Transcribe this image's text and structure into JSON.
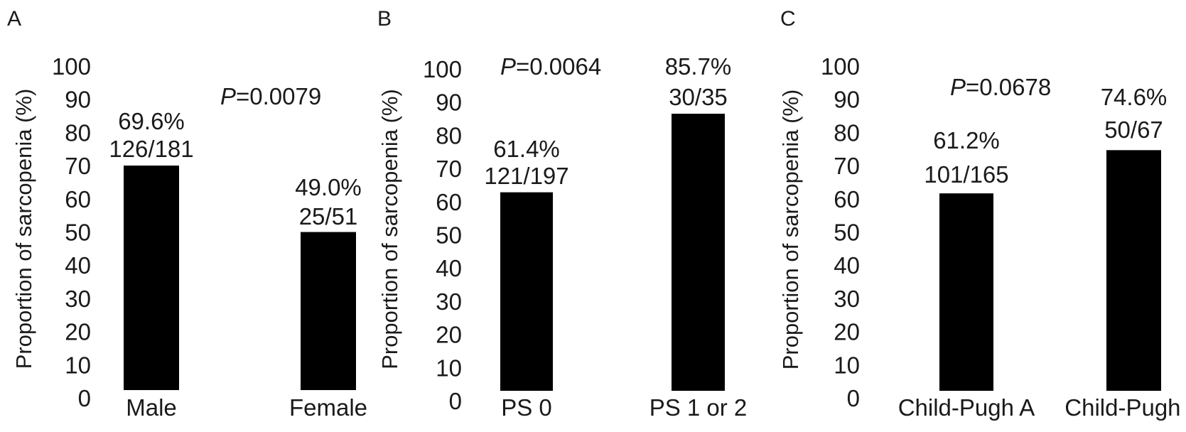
{
  "chart_data": [
    {
      "type": "bar",
      "panel_label": "A",
      "ylabel": "Proportion of sarcopenia (%)",
      "ylim": [
        0,
        100
      ],
      "yticks": [
        0,
        10,
        20,
        30,
        40,
        50,
        60,
        70,
        80,
        90,
        100
      ],
      "grid": false,
      "bar_color": "#000000",
      "categories": [
        "Male",
        "Female"
      ],
      "values": [
        69.6,
        49.0
      ],
      "pct_labels": [
        "69.6%",
        "49.0%"
      ],
      "count_labels": [
        "126/181",
        "25/51"
      ],
      "p_prefix": "P",
      "p_value": "=0.0079"
    },
    {
      "type": "bar",
      "panel_label": "B",
      "ylabel": "Proportion of sarcopenia (%)",
      "ylim": [
        0,
        100
      ],
      "yticks": [
        0,
        10,
        20,
        30,
        40,
        50,
        60,
        70,
        80,
        90,
        100
      ],
      "grid": false,
      "bar_color": "#000000",
      "categories": [
        "PS 0",
        "PS 1 or 2"
      ],
      "values": [
        61.4,
        85.7
      ],
      "pct_labels": [
        "61.4%",
        "85.7%"
      ],
      "count_labels": [
        "121/197",
        "30/35"
      ],
      "p_prefix": "P",
      "p_value": "=0.0064"
    },
    {
      "type": "bar",
      "panel_label": "C",
      "ylabel": "Proportion of sarcopenia (%)",
      "ylim": [
        0,
        100
      ],
      "yticks": [
        0,
        10,
        20,
        30,
        40,
        50,
        60,
        70,
        80,
        90,
        100
      ],
      "grid": false,
      "bar_color": "#000000",
      "categories": [
        "Child-Pugh A",
        "Child-Pugh B"
      ],
      "values": [
        61.2,
        74.6
      ],
      "pct_labels": [
        "61.2%",
        "74.6%"
      ],
      "count_labels": [
        "101/165",
        "50/67"
      ],
      "p_prefix": "P",
      "p_value": "=0.0678"
    }
  ]
}
